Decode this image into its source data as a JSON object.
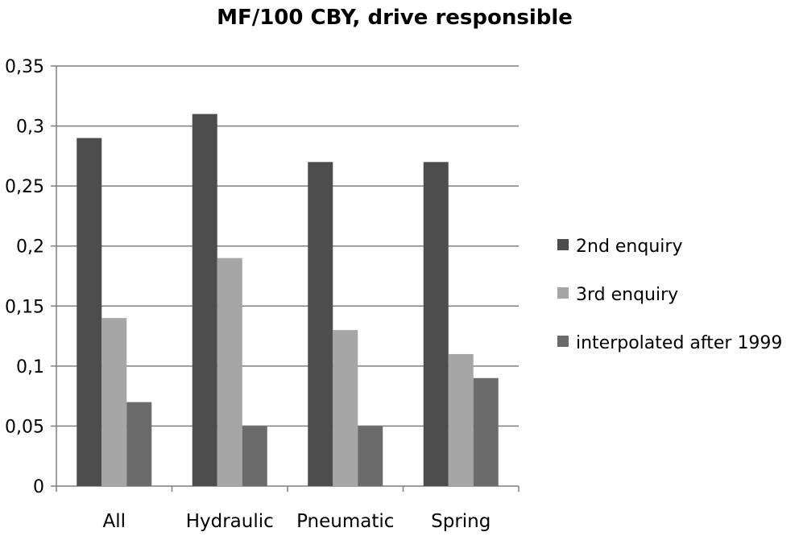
{
  "chart_data": {
    "type": "bar",
    "title": "MF/100 CBY, drive responsible",
    "xlabel": "",
    "ylabel": "",
    "categories": [
      "All",
      "Hydraulic",
      "Pneumatic",
      "Spring"
    ],
    "series": [
      {
        "name": "2nd enquiry",
        "values": [
          0.29,
          0.31,
          0.27,
          0.27
        ],
        "color": "#4d4d4d"
      },
      {
        "name": "3rd enquiry",
        "values": [
          0.14,
          0.19,
          0.13,
          0.11
        ],
        "color": "#a6a6a6"
      },
      {
        "name": "interpolated after 1999",
        "values": [
          0.07,
          0.05,
          0.05,
          0.09
        ],
        "color": "#6b6b6b"
      }
    ],
    "ylim": [
      0,
      0.35
    ],
    "yticks": [
      0,
      0.05,
      0.1,
      0.15,
      0.2,
      0.25,
      0.3,
      0.35
    ],
    "ytick_labels": [
      "0",
      "0,05",
      "0,1",
      "0,15",
      "0,2",
      "0,25",
      "0,3",
      "0,35"
    ],
    "grid": true,
    "legend_position": "right"
  }
}
